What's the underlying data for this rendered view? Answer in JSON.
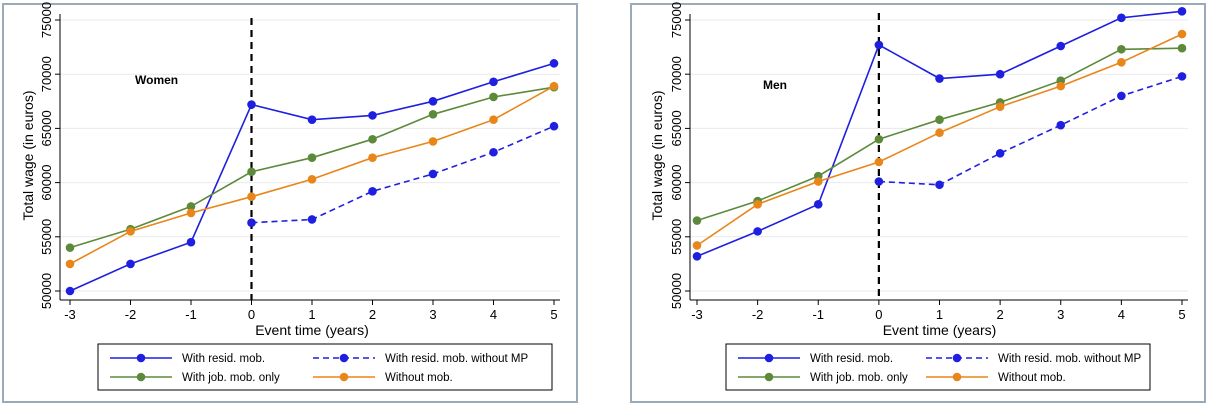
{
  "chart_data": [
    {
      "type": "line",
      "annotation": "Women",
      "xlabel": "Event time (years)",
      "ylabel": "Total wage (in euros)",
      "x": [
        -3,
        -2,
        -1,
        0,
        1,
        2,
        3,
        4,
        5
      ],
      "xlim": [
        -3,
        5
      ],
      "ylim": [
        50000,
        75000
      ],
      "yticks": [
        "50000",
        "55000",
        "60000",
        "65000",
        "70000",
        "75000"
      ],
      "xticks": [
        "-3",
        "-2",
        "-1",
        "0",
        "1",
        "2",
        "3",
        "4",
        "5"
      ],
      "vline_x": 0,
      "series": [
        {
          "name": "With resid. mob.",
          "color": "#1f1fe0",
          "dash": "solid",
          "values": [
            50000,
            52500,
            54500,
            67200,
            65800,
            66200,
            67500,
            69300,
            71000
          ]
        },
        {
          "name": "With resid. mob. without MP",
          "color": "#1f1fe0",
          "dash": "dashed",
          "values": [
            null,
            null,
            null,
            56300,
            56600,
            59200,
            60800,
            62800,
            65200
          ]
        },
        {
          "name": "With job. mob. only",
          "color": "#5c8a3a",
          "dash": "solid",
          "values": [
            54000,
            55700,
            57800,
            61000,
            62300,
            64000,
            66300,
            67900,
            68800
          ]
        },
        {
          "name": "Without  mob.",
          "color": "#e8861a",
          "dash": "solid",
          "values": [
            52500,
            55500,
            57200,
            58700,
            60300,
            62300,
            63800,
            65800,
            68900
          ]
        }
      ]
    },
    {
      "type": "line",
      "annotation": "Men",
      "xlabel": "Event time (years)",
      "ylabel": "Total wage (in euros)",
      "x": [
        -3,
        -2,
        -1,
        0,
        1,
        2,
        3,
        4,
        5
      ],
      "xlim": [
        -3,
        5
      ],
      "ylim": [
        50000,
        75000
      ],
      "yticks": [
        "50000",
        "55000",
        "60000",
        "65000",
        "70000",
        "75000"
      ],
      "xticks": [
        "-3",
        "-2",
        "-1",
        "0",
        "1",
        "2",
        "3",
        "4",
        "5"
      ],
      "vline_x": 0,
      "series": [
        {
          "name": "With resid. mob.",
          "color": "#1f1fe0",
          "dash": "solid",
          "values": [
            53200,
            55500,
            58000,
            72700,
            69600,
            70000,
            72600,
            75200,
            75800
          ]
        },
        {
          "name": "With resid. mob. without MP",
          "color": "#1f1fe0",
          "dash": "dashed",
          "values": [
            null,
            null,
            null,
            60100,
            59800,
            62700,
            65300,
            68000,
            69800
          ]
        },
        {
          "name": "With job. mob. only",
          "color": "#5c8a3a",
          "dash": "solid",
          "values": [
            56500,
            58300,
            60600,
            64000,
            65800,
            67400,
            69400,
            72300,
            72400
          ]
        },
        {
          "name": "Without  mob.",
          "color": "#e8861a",
          "dash": "solid",
          "values": [
            54200,
            58000,
            60100,
            61900,
            64600,
            67000,
            68900,
            71100,
            73700
          ]
        }
      ]
    }
  ]
}
